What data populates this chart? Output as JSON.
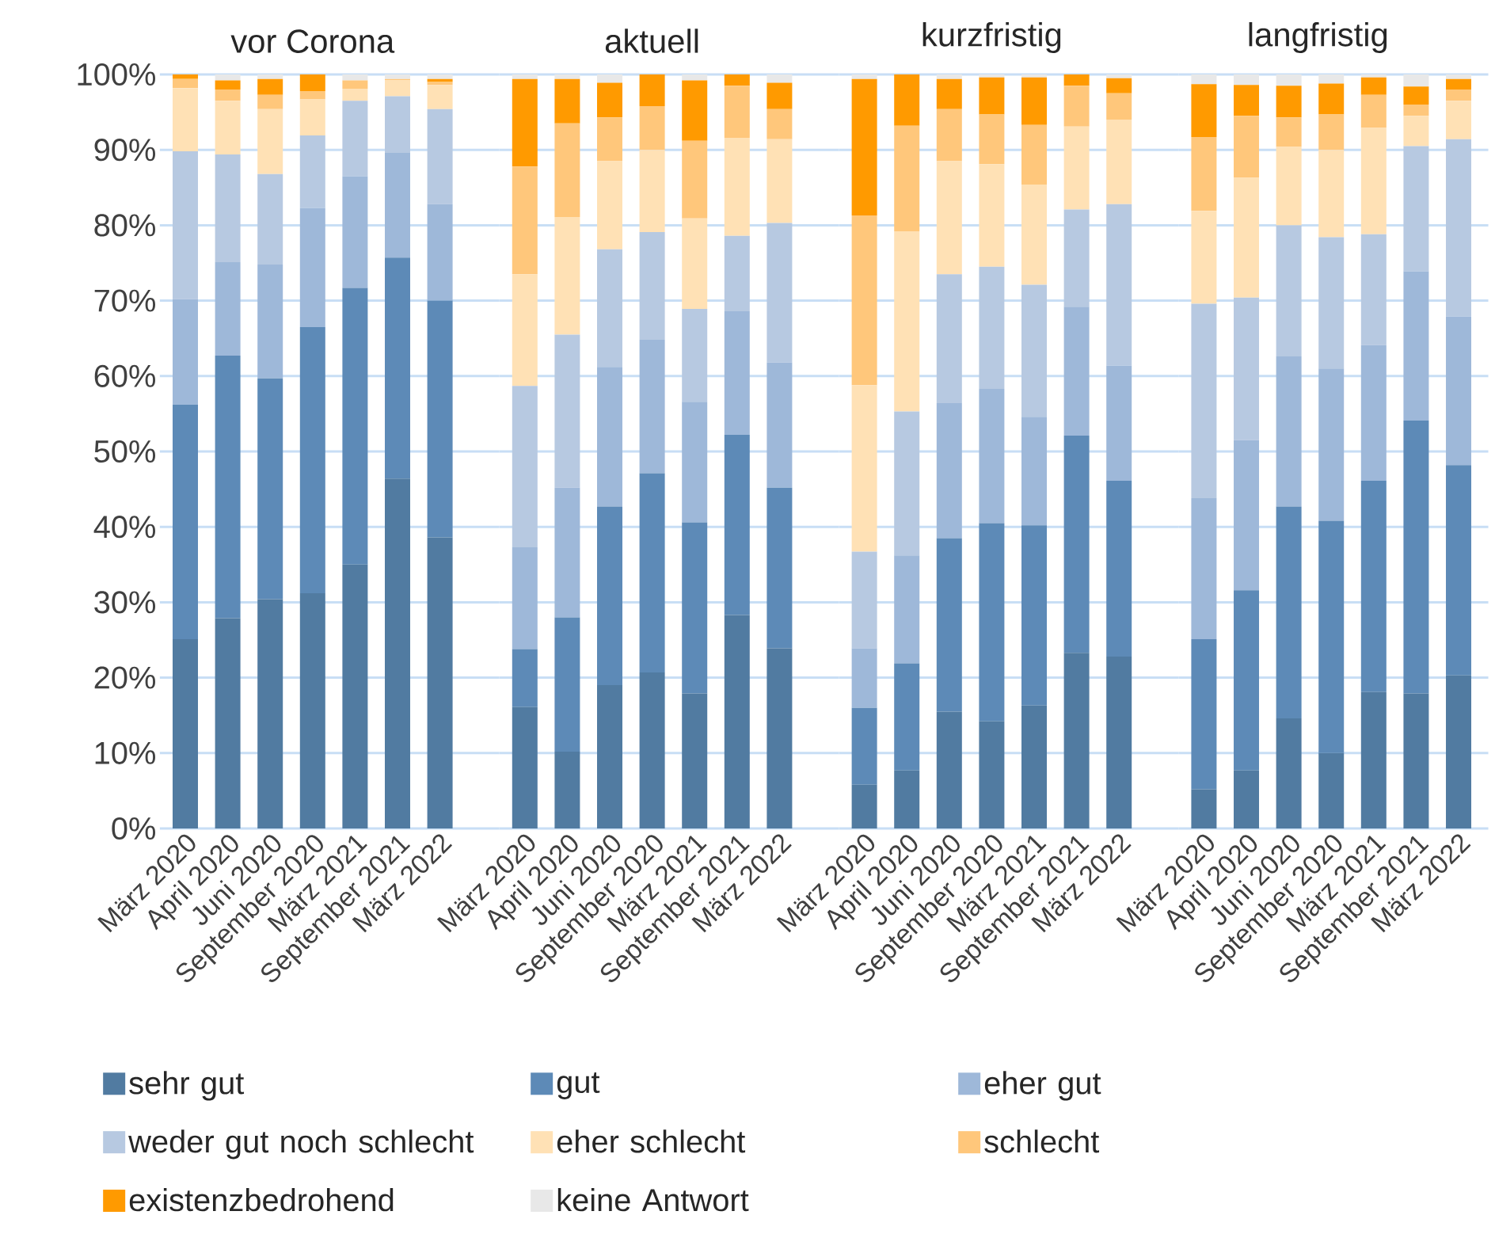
{
  "chart_data": [
    {
      "type": "bar",
      "stacked": true,
      "title": "vor Corona",
      "legend": "bottom",
      "grid": "y",
      "ylim": [
        0,
        100
      ],
      "yticks": [
        {
          "value": 0,
          "label": "0%"
        },
        {
          "value": 10,
          "label": "10%"
        },
        {
          "value": 20,
          "label": "20%"
        },
        {
          "value": 30,
          "label": "30%"
        },
        {
          "value": 40,
          "label": "40%"
        },
        {
          "value": 50,
          "label": "50%"
        },
        {
          "value": 60,
          "label": "60%"
        },
        {
          "value": 70,
          "label": "70%"
        },
        {
          "value": 80,
          "label": "80%"
        },
        {
          "value": 90,
          "label": "90%"
        },
        {
          "value": 100,
          "label": "100%"
        }
      ],
      "categories": [
        "März 2020",
        "April 2020",
        "Juni 2020",
        "September 2020",
        "März 2021",
        "September 2021",
        "März 2022"
      ],
      "series": [
        {
          "name": "sehr gut",
          "color": "#517ba1",
          "values": [
            25.1,
            27.9,
            30.4,
            31.2,
            35.0,
            46.4,
            38.6
          ]
        },
        {
          "name": "gut",
          "color": "#5d8ab7",
          "values": [
            31.1,
            34.8,
            29.3,
            35.3,
            36.7,
            29.3,
            31.4
          ]
        },
        {
          "name": "eher gut",
          "color": "#9eb8d9",
          "values": [
            14.0,
            12.4,
            15.1,
            15.8,
            14.8,
            13.9,
            12.8
          ]
        },
        {
          "name": "weder gut noch schlecht",
          "color": "#b7c9e1",
          "values": [
            19.6,
            14.3,
            12.0,
            9.6,
            10.0,
            7.5,
            12.6
          ]
        },
        {
          "name": "eher schlecht",
          "color": "#ffe1b5",
          "values": [
            8.4,
            7.1,
            8.6,
            4.8,
            1.6,
            2.1,
            3.2
          ]
        },
        {
          "name": "schlecht",
          "color": "#ffc77b",
          "values": [
            1.2,
            1.5,
            1.9,
            1.1,
            1.1,
            0.2,
            0.4
          ]
        },
        {
          "name": "existenzbedrohend",
          "color": "#ff9a00",
          "values": [
            0.6,
            1.2,
            2.1,
            2.2,
            0,
            0,
            0.4
          ]
        },
        {
          "name": "keine Antwort",
          "color": "#e8e8e8",
          "values": [
            0,
            0.8,
            0.6,
            0,
            0.8,
            0.6,
            0.6
          ]
        }
      ]
    },
    {
      "type": "bar",
      "stacked": true,
      "title": "aktuell",
      "grid": "y",
      "tick_labels": "x",
      "ylim": [
        0,
        100
      ],
      "yticks": [
        {
          "value": 0,
          "label": null
        },
        {
          "value": 10,
          "label": null
        },
        {
          "value": 20,
          "label": null
        },
        {
          "value": 30,
          "label": null
        },
        {
          "value": 40,
          "label": null
        },
        {
          "value": 50,
          "label": null
        },
        {
          "value": 60,
          "label": null
        },
        {
          "value": 70,
          "label": null
        },
        {
          "value": 80,
          "label": null
        },
        {
          "value": 90,
          "label": null
        },
        {
          "value": 100,
          "label": null
        }
      ],
      "categories": [
        "März 2020",
        "April 2020",
        "Juni 2020",
        "September 2020",
        "März 2021",
        "September 2021",
        "März 2022"
      ],
      "series": [
        {
          "color": "#517ba1",
          "values": [
            16.1,
            10.2,
            19.0,
            20.7,
            17.9,
            28.3,
            23.9
          ]
        },
        {
          "color": "#5d8ab7",
          "values": [
            7.7,
            17.8,
            23.7,
            26.4,
            22.7,
            23.9,
            21.3
          ]
        },
        {
          "color": "#9eb8d9",
          "values": [
            13.5,
            17.2,
            18.5,
            17.7,
            16.0,
            16.4,
            16.6
          ]
        },
        {
          "color": "#b7c9e1",
          "values": [
            21.4,
            20.3,
            15.6,
            14.3,
            12.3,
            10.0,
            18.5
          ]
        },
        {
          "color": "#ffe1b5",
          "values": [
            14.8,
            15.6,
            11.7,
            10.9,
            12.0,
            13.0,
            11.1
          ]
        },
        {
          "color": "#ffc77b",
          "values": [
            14.3,
            12.4,
            5.8,
            5.8,
            10.3,
            6.9,
            4.0
          ]
        },
        {
          "color": "#ff9a00",
          "values": [
            11.6,
            5.9,
            4.6,
            4.2,
            8.0,
            1.5,
            3.5
          ]
        },
        {
          "color": "#e8e8e8",
          "values": [
            0.6,
            0.6,
            1.1,
            0,
            0.8,
            0,
            1.1
          ]
        }
      ]
    },
    {
      "type": "bar",
      "stacked": true,
      "title": "kurzfristig",
      "grid": "y",
      "tick_labels": "x",
      "ylim": [
        0,
        100
      ],
      "yticks": [
        {
          "value": 0,
          "label": null
        },
        {
          "value": 10,
          "label": null
        },
        {
          "value": 20,
          "label": null
        },
        {
          "value": 30,
          "label": null
        },
        {
          "value": 40,
          "label": null
        },
        {
          "value": 50,
          "label": null
        },
        {
          "value": 60,
          "label": null
        },
        {
          "value": 70,
          "label": null
        },
        {
          "value": 80,
          "label": null
        },
        {
          "value": 90,
          "label": null
        },
        {
          "value": 100,
          "label": null
        }
      ],
      "categories": [
        "März 2020",
        "April 2020",
        "Juni 2020",
        "September 2020",
        "März 2021",
        "September 2021",
        "März 2022"
      ],
      "series": [
        {
          "color": "#517ba1",
          "values": [
            5.8,
            7.7,
            15.5,
            14.2,
            16.3,
            23.3,
            22.8
          ]
        },
        {
          "color": "#5d8ab7",
          "values": [
            10.2,
            14.2,
            23.0,
            26.3,
            23.9,
            28.8,
            23.3
          ]
        },
        {
          "color": "#9eb8d9",
          "values": [
            7.9,
            14.3,
            17.9,
            17.8,
            14.4,
            17.1,
            15.3
          ]
        },
        {
          "color": "#b7c9e1",
          "values": [
            12.8,
            19.1,
            17.1,
            16.2,
            17.5,
            12.9,
            21.4
          ]
        },
        {
          "color": "#ffe1b5",
          "values": [
            22.1,
            23.9,
            15.0,
            13.6,
            13.3,
            11.0,
            11.2
          ]
        },
        {
          "color": "#ffc77b",
          "values": [
            22.5,
            14.0,
            6.9,
            6.6,
            7.9,
            5.4,
            3.5
          ]
        },
        {
          "color": "#ff9a00",
          "values": [
            18.1,
            6.8,
            4.0,
            4.9,
            6.3,
            1.5,
            2.0
          ]
        },
        {
          "color": "#e8e8e8",
          "values": [
            0.6,
            0,
            0.6,
            0.4,
            0.4,
            0,
            0.5
          ]
        }
      ]
    },
    {
      "type": "bar",
      "stacked": true,
      "title": "langfristig",
      "grid": "y",
      "tick_labels": "x",
      "ylim": [
        0,
        100
      ],
      "yticks": [
        {
          "value": 0,
          "label": null
        },
        {
          "value": 10,
          "label": null
        },
        {
          "value": 20,
          "label": null
        },
        {
          "value": 30,
          "label": null
        },
        {
          "value": 40,
          "label": null
        },
        {
          "value": 50,
          "label": null
        },
        {
          "value": 60,
          "label": null
        },
        {
          "value": 70,
          "label": null
        },
        {
          "value": 80,
          "label": null
        },
        {
          "value": 90,
          "label": null
        },
        {
          "value": 100,
          "label": null
        }
      ],
      "categories": [
        "März 2020",
        "April 2020",
        "Juni 2020",
        "September 2020",
        "März 2021",
        "September 2021",
        "März 2022"
      ],
      "series": [
        {
          "color": "#517ba1",
          "values": [
            5.2,
            7.7,
            14.6,
            10.0,
            18.1,
            17.9,
            20.3
          ]
        },
        {
          "color": "#5d8ab7",
          "values": [
            19.9,
            23.9,
            28.1,
            30.8,
            28.0,
            36.2,
            27.9
          ]
        },
        {
          "color": "#9eb8d9",
          "values": [
            18.7,
            19.9,
            19.9,
            20.2,
            18.0,
            19.8,
            19.7
          ]
        },
        {
          "color": "#b7c9e1",
          "values": [
            25.8,
            18.9,
            17.4,
            17.4,
            14.7,
            16.6,
            23.5
          ]
        },
        {
          "color": "#ffe1b5",
          "values": [
            12.3,
            15.9,
            10.4,
            11.6,
            14.1,
            4.0,
            5.1
          ]
        },
        {
          "color": "#ffc77b",
          "values": [
            9.8,
            8.2,
            3.9,
            4.7,
            4.4,
            1.5,
            1.5
          ]
        },
        {
          "color": "#ff9a00",
          "values": [
            7.0,
            4.1,
            4.2,
            4.1,
            2.3,
            2.4,
            1.4
          ]
        },
        {
          "color": "#e8e8e8",
          "values": [
            1.3,
            1.4,
            1.5,
            1.2,
            0.4,
            1.6,
            0.6
          ]
        }
      ]
    }
  ]
}
